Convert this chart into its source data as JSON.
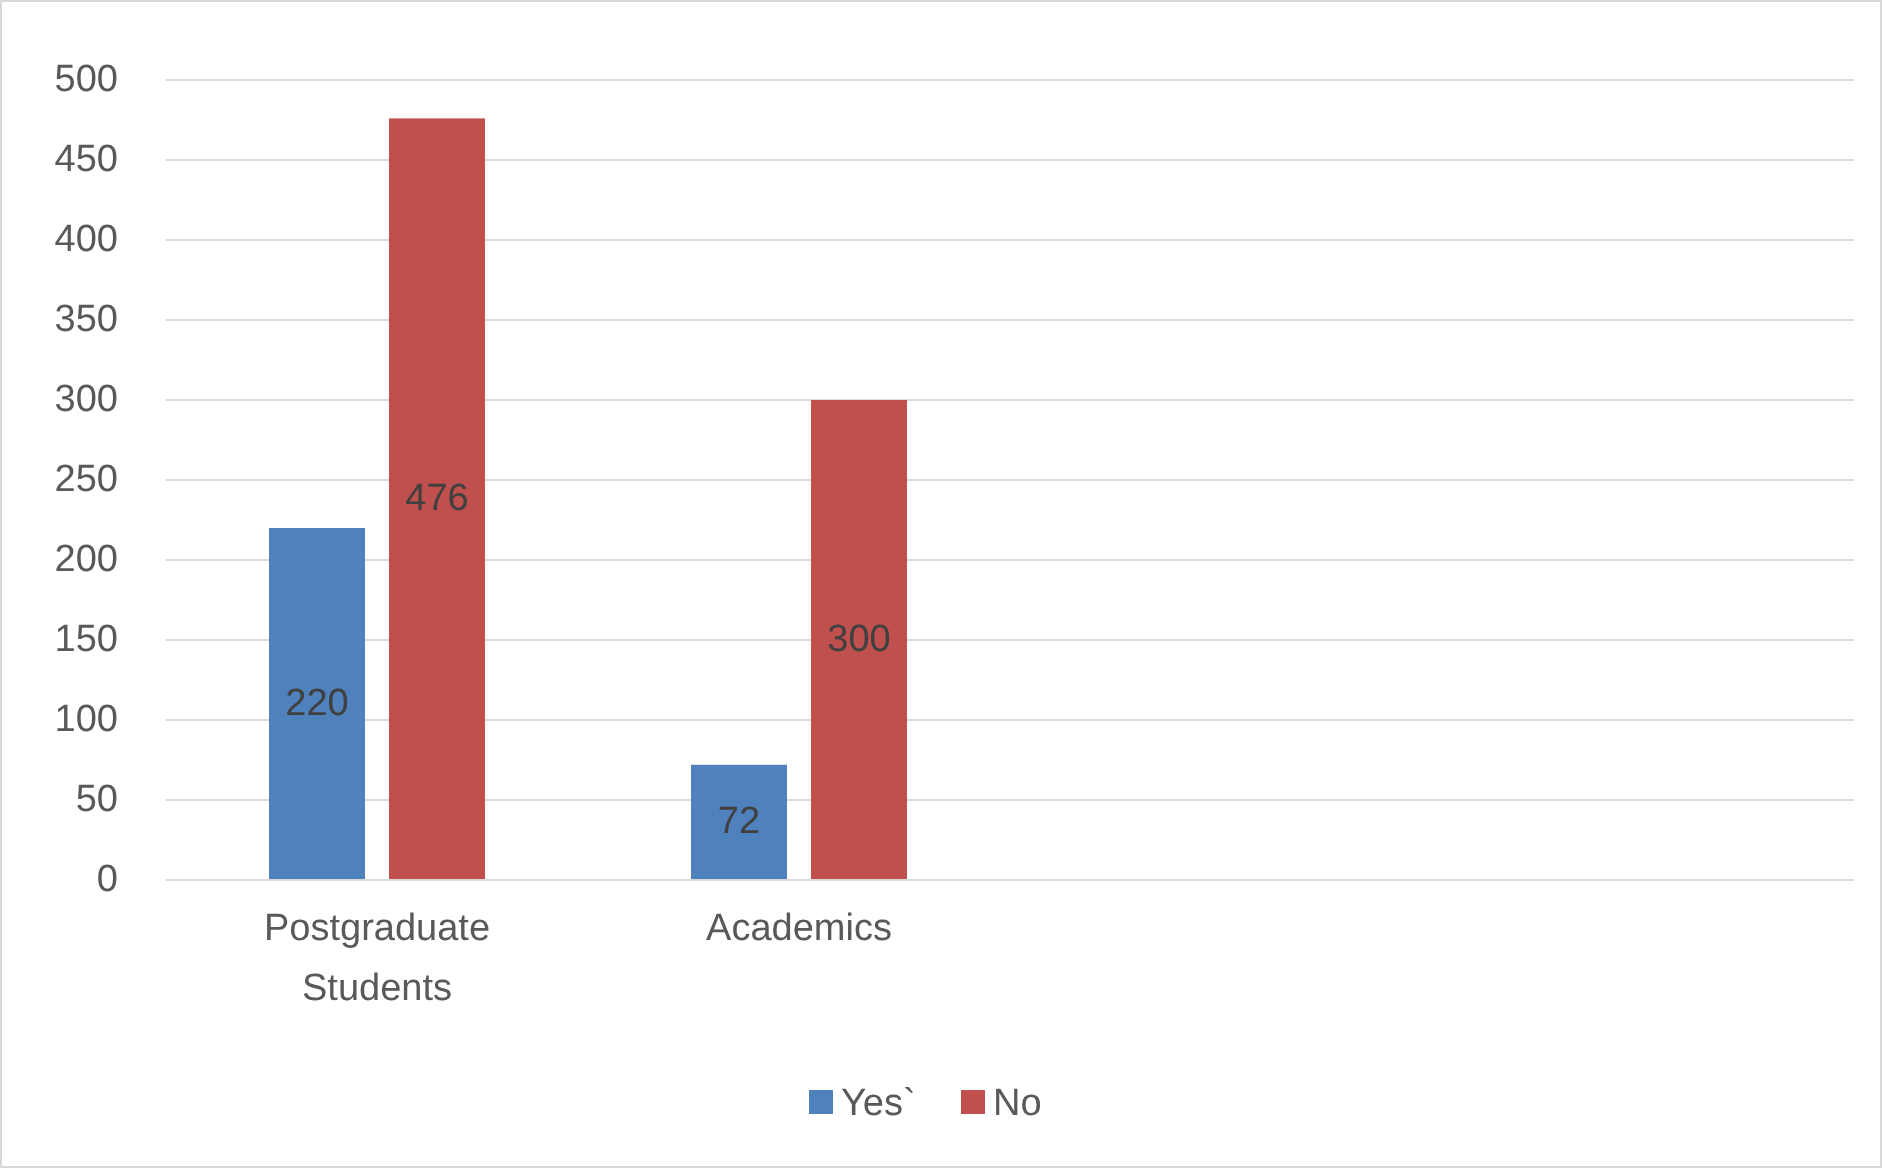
{
  "chart_data": {
    "type": "bar",
    "categories": [
      "Postgraduate Students",
      "Academics",
      null,
      null
    ],
    "series": [
      {
        "name": "Yes`",
        "color": "#4f81bd",
        "values": [
          220,
          72,
          null,
          null
        ]
      },
      {
        "name": "No",
        "color": "#c0504d",
        "values": [
          476,
          300,
          null,
          null
        ]
      }
    ],
    "ylim": [
      0,
      500
    ],
    "yticks": [
      0,
      50,
      100,
      150,
      200,
      250,
      300,
      350,
      400,
      450,
      500
    ],
    "grid": "y",
    "legend": "bottom",
    "data_labels": true
  }
}
